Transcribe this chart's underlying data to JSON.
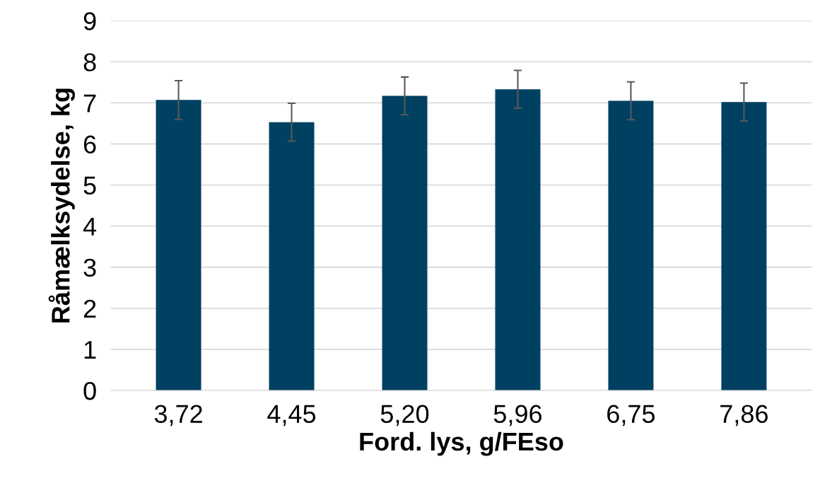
{
  "chart_data": {
    "type": "bar",
    "xlabel": "Ford. lys, g/FEso",
    "ylabel": "Råmælksydelse, kg",
    "categories": [
      "3,72",
      "4,45",
      "5,20",
      "5,96",
      "6,75",
      "7,86"
    ],
    "values": [
      7.07,
      6.53,
      7.17,
      7.33,
      7.05,
      7.02
    ],
    "errors": [
      0.47,
      0.46,
      0.46,
      0.46,
      0.46,
      0.46
    ],
    "color": "#004161",
    "ylim": [
      0,
      9
    ],
    "yticks": [
      0,
      1,
      2,
      3,
      4,
      5,
      6,
      7,
      8,
      9
    ],
    "grid": "y"
  }
}
